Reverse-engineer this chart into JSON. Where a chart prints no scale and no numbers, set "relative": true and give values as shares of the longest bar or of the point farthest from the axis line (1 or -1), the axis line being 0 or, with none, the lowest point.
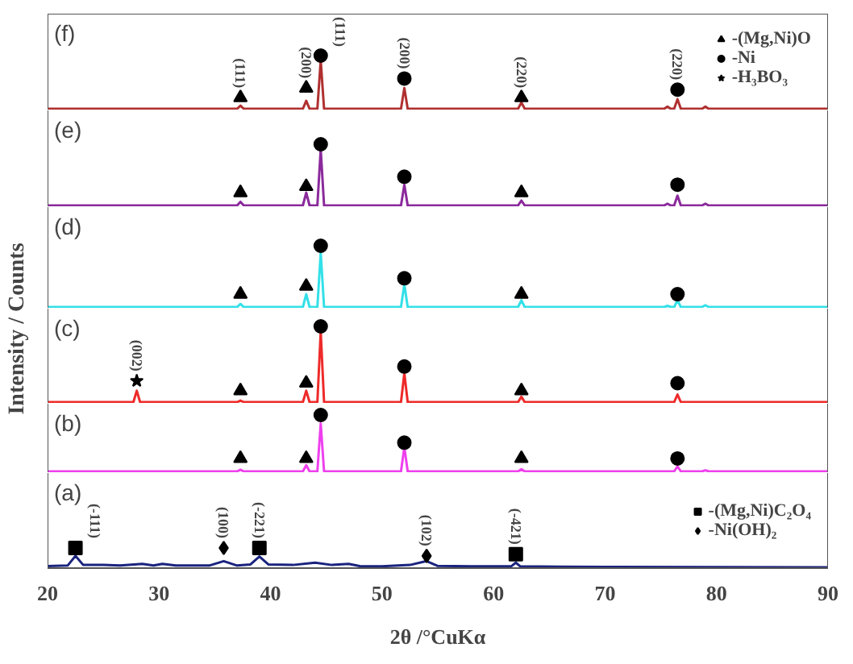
{
  "chart_data": [
    {
      "type": "line",
      "relative": true,
      "xlim": [
        20,
        90
      ],
      "xticks": [
        20,
        30,
        40,
        50,
        60,
        70,
        80,
        90
      ],
      "tick_labels": false,
      "legend": "top right",
      "annotations": [
        "(f)",
        {
          "text": "(111)",
          "x": 37.3,
          "y": 0.21
        },
        {
          "text": "(200)",
          "x": 43.2,
          "y": 0.39
        },
        {
          "text": "(111)",
          "x": 44.5,
          "y": 1
        },
        {
          "text": "(200)",
          "x": 52,
          "y": 0.57
        },
        {
          "text": "(220)",
          "x": 62.5,
          "y": 0.21
        },
        {
          "text": "(220)",
          "x": 76.5,
          "y": 0.36
        }
      ],
      "series": [
        {
          "color": "#b03030",
          "x": [
            20,
            37,
            37.3,
            37.6,
            42.9,
            43.2,
            43.5,
            44.2,
            44.5,
            44.8,
            51.7,
            52,
            52.3,
            62.2,
            62.5,
            62.8,
            75.3,
            75.6,
            75.9,
            76.2,
            76.5,
            76.8,
            78.7,
            79,
            79.3,
            90
          ],
          "values": [
            0,
            0,
            0.06,
            0,
            0,
            0.15,
            0,
            0,
            0.91,
            0,
            0,
            0.39,
            0,
            0,
            0.12,
            0,
            0,
            0.04,
            0,
            0,
            0.18,
            0,
            0,
            0.04,
            0,
            0
          ]
        },
        {
          "type": "scatter",
          "marker": "triangle",
          "name": "-(Mg,Ni)O",
          "color": "#000000",
          "x": [
            37.3,
            43.2,
            62.5
          ],
          "values": [
            0.21,
            0.39,
            0.21
          ]
        },
        {
          "type": "scatter",
          "marker": "circle",
          "name": "-Ni",
          "color": "#000000",
          "x": [
            44.5,
            52,
            76.5
          ],
          "values": [
            1,
            0.57,
            0.36
          ]
        }
      ]
    },
    {
      "type": "line",
      "relative": true,
      "xlim": [
        20,
        90
      ],
      "xticks": [
        20,
        30,
        40,
        50,
        60,
        70,
        80,
        90
      ],
      "tick_labels": false,
      "annotations": [
        "(e)"
      ],
      "series": [
        {
          "color": "#8b2a9c",
          "x": [
            20,
            37,
            37.3,
            37.6,
            42.9,
            43.2,
            43.5,
            44.2,
            44.5,
            44.8,
            51.7,
            52,
            52.3,
            62.2,
            62.5,
            62.8,
            75.3,
            75.6,
            75.9,
            76.2,
            76.5,
            76.8,
            78.7,
            79,
            79.3,
            90
          ],
          "values": [
            0,
            0,
            0.06,
            0,
            0,
            0.21,
            0,
            0,
            0.92,
            0,
            0,
            0.34,
            0,
            0,
            0.08,
            0,
            0,
            0.03,
            0,
            0,
            0.16,
            0,
            0,
            0.03,
            0,
            0
          ]
        },
        {
          "type": "scatter",
          "marker": "triangle",
          "color": "#000000",
          "x": [
            37.3,
            43.2,
            62.5
          ],
          "values": [
            0.21,
            0.31,
            0.21
          ]
        },
        {
          "type": "scatter",
          "marker": "circle",
          "color": "#000000",
          "x": [
            44.5,
            52,
            76.5
          ],
          "values": [
            1,
            0.47,
            0.34
          ]
        }
      ]
    },
    {
      "type": "line",
      "relative": true,
      "xlim": [
        20,
        90
      ],
      "xticks": [
        20,
        30,
        40,
        50,
        60,
        70,
        80,
        90
      ],
      "tick_labels": false,
      "annotations": [
        "(d)"
      ],
      "series": [
        {
          "color": "#33e0e8",
          "x": [
            20,
            37,
            37.3,
            37.6,
            42.9,
            43.2,
            43.5,
            44.2,
            44.5,
            44.8,
            51.7,
            52,
            52.3,
            62.2,
            62.5,
            62.8,
            75.3,
            75.6,
            75.9,
            76.2,
            76.5,
            76.8,
            78.7,
            79,
            79.3,
            90
          ],
          "values": [
            0,
            0,
            0.05,
            0,
            0,
            0.21,
            0,
            0,
            0.89,
            0,
            0,
            0.37,
            0,
            0,
            0.11,
            0,
            0,
            0.02,
            0,
            0,
            0.11,
            0,
            0,
            0.03,
            0,
            0
          ]
        },
        {
          "type": "scatter",
          "marker": "triangle",
          "color": "#000000",
          "x": [
            37.3,
            43.2,
            62.5
          ],
          "values": [
            0.21,
            0.34,
            0.21
          ]
        },
        {
          "type": "scatter",
          "marker": "circle",
          "color": "#000000",
          "x": [
            44.5,
            52,
            76.5
          ],
          "values": [
            1,
            0.47,
            0.21
          ]
        }
      ]
    },
    {
      "type": "line",
      "relative": true,
      "xlim": [
        20,
        90
      ],
      "xticks": [
        20,
        30,
        40,
        50,
        60,
        70,
        80,
        90
      ],
      "tick_labels": false,
      "ylabel": "Intensity / Counts",
      "annotations": [
        "(c)",
        {
          "text": "(002)",
          "x": 28,
          "y": 0.28
        }
      ],
      "series": [
        {
          "color": "#ee2a2a",
          "x": [
            20,
            27.7,
            28,
            28.3,
            37,
            37.3,
            37.6,
            42.9,
            43.2,
            43.5,
            44.2,
            44.5,
            44.8,
            51.7,
            52,
            52.3,
            62.2,
            62.5,
            62.8,
            76.2,
            76.5,
            76.8,
            90
          ],
          "values": [
            0,
            0,
            0.15,
            0,
            0,
            0.02,
            0,
            0,
            0.15,
            0,
            0,
            0.93,
            0,
            0,
            0.38,
            0,
            0,
            0.07,
            0,
            0,
            0.1,
            0,
            0
          ]
        },
        {
          "type": "scatter",
          "marker": "triangle",
          "color": "#000000",
          "x": [
            37.3,
            43.2,
            62.5
          ],
          "values": [
            0.15,
            0.25,
            0.15
          ]
        },
        {
          "type": "scatter",
          "marker": "circle",
          "color": "#000000",
          "x": [
            44.5,
            52,
            76.5
          ],
          "values": [
            1,
            0.47,
            0.25
          ]
        },
        {
          "type": "scatter",
          "marker": "star",
          "name": "-H₃BO₃",
          "color": "#000000",
          "x": [
            28
          ],
          "values": [
            0.28
          ]
        }
      ]
    },
    {
      "type": "line",
      "relative": true,
      "xlim": [
        20,
        90
      ],
      "xticks": [
        20,
        30,
        40,
        50,
        60,
        70,
        80,
        90
      ],
      "tick_labels": false,
      "annotations": [
        "(b)"
      ],
      "series": [
        {
          "color": "#ee40ee",
          "x": [
            20,
            37,
            37.3,
            37.6,
            42.9,
            43.2,
            43.5,
            44.2,
            44.5,
            44.8,
            51.7,
            52,
            52.3,
            62.2,
            62.5,
            62.8,
            76.2,
            76.5,
            76.8,
            78.7,
            79,
            79.3,
            90
          ],
          "values": [
            0,
            0,
            0.03,
            0,
            0,
            0.11,
            0,
            0,
            0.85,
            0,
            0,
            0.43,
            0,
            0,
            0.04,
            0,
            0,
            0.09,
            0,
            0,
            0.02,
            0,
            0
          ]
        },
        {
          "type": "scatter",
          "marker": "triangle",
          "color": "#000000",
          "x": [
            37.3,
            43.2,
            62.5
          ],
          "values": [
            0.23,
            0.23,
            0.23
          ]
        },
        {
          "type": "scatter",
          "marker": "circle",
          "color": "#000000",
          "x": [
            44.5,
            52,
            76.5
          ],
          "values": [
            1,
            0.51,
            0.23
          ]
        }
      ]
    },
    {
      "type": "line",
      "relative": true,
      "xlim": [
        20,
        90
      ],
      "xticks": [
        20,
        30,
        40,
        50,
        60,
        70,
        80,
        90
      ],
      "tick_labels": "x",
      "xlabel": "2θ /°CuKα",
      "legend": "right",
      "annotations": [
        "(a)",
        {
          "text": "(-111)",
          "x": 22.5,
          "y": 1
        },
        {
          "text": "(100)",
          "x": 35.8,
          "y": 1
        },
        {
          "text": "(-221)",
          "x": 39,
          "y": 1
        },
        {
          "text": "(102)",
          "x": 54,
          "y": 0.59
        },
        {
          "text": "(-421)",
          "x": 62,
          "y": 0.68
        }
      ],
      "series": [
        {
          "color": "#1a237e",
          "x": [
            20,
            21.8,
            22.5,
            23.2,
            25,
            26.5,
            28.5,
            29.5,
            30.3,
            31.5,
            34.5,
            35.8,
            37,
            38.2,
            39,
            39.8,
            42,
            44,
            45.5,
            47,
            48,
            50,
            52.5,
            54,
            55,
            58,
            61.6,
            62,
            62.4,
            66,
            70,
            80,
            90
          ],
          "values": [
            0.06,
            0.09,
            0.59,
            0.12,
            0.12,
            0.09,
            0.18,
            0.09,
            0.18,
            0.09,
            0.09,
            0.32,
            0.09,
            0.15,
            0.56,
            0.15,
            0.12,
            0.24,
            0.12,
            0.18,
            0.06,
            0.05,
            0.12,
            0.32,
            0.07,
            0.05,
            0.06,
            0.24,
            0.05,
            0.03,
            0.02,
            0.01,
            0
          ]
        },
        {
          "type": "scatter",
          "marker": "square",
          "name": "-(Mg,Ni)C₂O₄",
          "color": "#000000",
          "x": [
            22.5,
            39,
            62
          ],
          "values": [
            1,
            1,
            0.68
          ]
        },
        {
          "type": "scatter",
          "marker": "diamond",
          "name": "-Ni(OH)₂",
          "color": "#000000",
          "x": [
            35.8,
            54
          ],
          "values": [
            1,
            0.59
          ]
        }
      ]
    }
  ]
}
